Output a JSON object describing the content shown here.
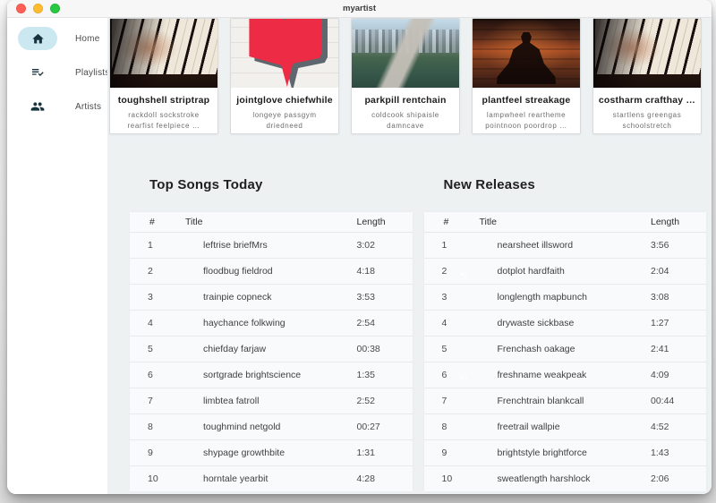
{
  "window": {
    "title": "myartist"
  },
  "sidebar": {
    "items": [
      {
        "label": "Home",
        "icon": "home-icon",
        "active": true
      },
      {
        "label": "Playlists",
        "icon": "playlist-check-icon",
        "active": false
      },
      {
        "label": "Artists",
        "icon": "artists-icon",
        "active": false
      }
    ]
  },
  "artist_cards": [
    {
      "title": "toughshell striptrap",
      "subtitle": "rackdoll sockstroke rearfist feelpiece …",
      "art": "piano-hands"
    },
    {
      "title": "jointglove chiefwhile",
      "subtitle": "longeye passgym driedneed",
      "art": "heart-wall"
    },
    {
      "title": "parkpill rentchain",
      "subtitle": "coldcook shipaisle damncave",
      "art": "city-aerial"
    },
    {
      "title": "plantfeel streakage",
      "subtitle": "lampwheel reartheme pointnoon poordrop …",
      "art": "meditation-sunset"
    },
    {
      "title": "costharm crafthay …",
      "subtitle": "startlens greengas schoolstretch straightrim…",
      "art": "piano-hands"
    }
  ],
  "columns": {
    "rank": "#",
    "title": "Title",
    "length": "Length"
  },
  "sections": [
    {
      "heading": "Top Songs Today",
      "rows": [
        {
          "rank": "1",
          "title": "leftrise briefMrs",
          "length": "3:02",
          "thumb": "latte"
        },
        {
          "rank": "2",
          "title": "floodbug fieldrod",
          "length": "4:18",
          "thumb": "concert-red"
        },
        {
          "rank": "3",
          "title": "trainpie copneck",
          "length": "3:53",
          "thumb": "jumper"
        },
        {
          "rank": "4",
          "title": "haychance folkwing",
          "length": "2:54",
          "thumb": "sitting"
        },
        {
          "rank": "5",
          "title": "chiefday farjaw",
          "length": "00:38",
          "thumb": "typing"
        },
        {
          "rank": "6",
          "title": "sortgrade brightscience",
          "length": "1:35",
          "thumb": "city"
        },
        {
          "rank": "7",
          "title": "limbtea fatroll",
          "length": "2:52",
          "thumb": "city"
        },
        {
          "rank": "8",
          "title": "toughmind netgold",
          "length": "00:27",
          "thumb": "piano"
        },
        {
          "rank": "9",
          "title": "shypage growthbite",
          "length": "1:31",
          "thumb": "jumper"
        },
        {
          "rank": "10",
          "title": "horntale yearbit",
          "length": "4:28",
          "thumb": "jumper"
        }
      ]
    },
    {
      "heading": "New Releases",
      "rows": [
        {
          "rank": "1",
          "title": "nearsheet illsword",
          "length": "3:56",
          "thumb": "crowd"
        },
        {
          "rank": "2",
          "title": "dotplot hardfaith",
          "length": "2:04",
          "thumb": "heart-badge"
        },
        {
          "rank": "3",
          "title": "longlength mapbunch",
          "length": "3:08",
          "thumb": "piano"
        },
        {
          "rank": "4",
          "title": "drywaste sickbase",
          "length": "1:27",
          "thumb": "concert-red"
        },
        {
          "rank": "5",
          "title": "Frenchash oakage",
          "length": "2:41",
          "thumb": "piano"
        },
        {
          "rank": "6",
          "title": "freshname weakpeak",
          "length": "4:09",
          "thumb": "heart-badge"
        },
        {
          "rank": "7",
          "title": "Frenchtrain blankcall",
          "length": "00:44",
          "thumb": "city"
        },
        {
          "rank": "8",
          "title": "freetrail wallpie",
          "length": "4:52",
          "thumb": "piano"
        },
        {
          "rank": "9",
          "title": "brightstyle brightforce",
          "length": "1:43",
          "thumb": "piano"
        },
        {
          "rank": "10",
          "title": "sweatlength harshlock",
          "length": "2:06",
          "thumb": "crowd"
        }
      ]
    }
  ],
  "colors": {
    "active_pill": "#cbe8f1",
    "heart_red": "#ee2b45",
    "traffic_red": "#ff5f57",
    "traffic_yellow": "#febc2e",
    "traffic_green": "#28c840",
    "content_bg": "#edf1f2"
  }
}
